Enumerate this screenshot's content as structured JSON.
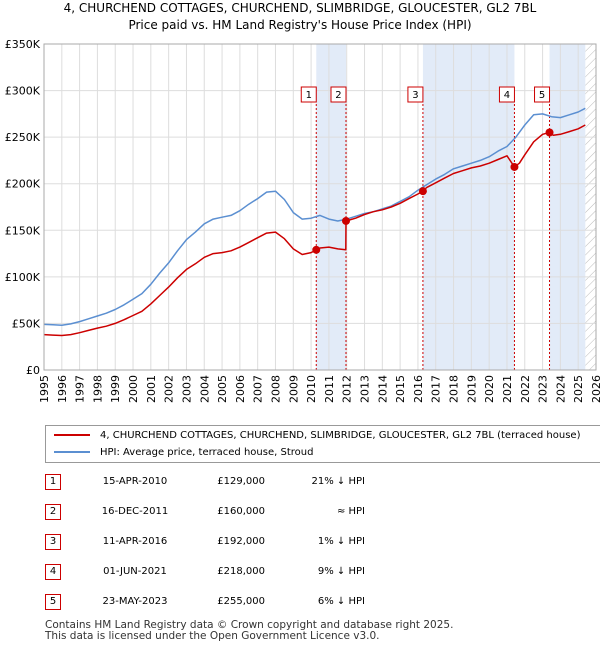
{
  "title_line1": "4, CHURCHEND COTTAGES, CHURCHEND, SLIMBRIDGE, GLOUCESTER, GL2 7BL",
  "title_line2": "Price paid vs. HM Land Registry's House Price Index (HPI)",
  "colors": {
    "price": "#cc0000",
    "hpi": "#5b8fd1",
    "shade": "#dbe6f6",
    "marker_line": "#cc0000"
  },
  "legend": {
    "price_label": "4, CHURCHEND COTTAGES, CHURCHEND, SLIMBRIDGE, GLOUCESTER, GL2 7BL (terraced house)",
    "hpi_label": "HPI: Average price, terraced house, Stroud"
  },
  "sales": [
    {
      "num": "1",
      "date": "15-APR-2010",
      "price": "£129,000",
      "rel": "21% ↓ HPI"
    },
    {
      "num": "2",
      "date": "16-DEC-2011",
      "price": "£160,000",
      "rel": "≈ HPI"
    },
    {
      "num": "3",
      "date": "11-APR-2016",
      "price": "£192,000",
      "rel": "1% ↓ HPI"
    },
    {
      "num": "4",
      "date": "01-JUN-2021",
      "price": "£218,000",
      "rel": "9% ↓ HPI"
    },
    {
      "num": "5",
      "date": "23-MAY-2023",
      "price": "£255,000",
      "rel": "6% ↓ HPI"
    }
  ],
  "footer_line1": "Contains HM Land Registry data © Crown copyright and database right 2025.",
  "footer_line2": "This data is licensed under the Open Government Licence v3.0.",
  "chart_data": {
    "type": "line",
    "title": "4, CHURCHEND COTTAGES, CHURCHEND, SLIMBRIDGE, GLOUCESTER, GL2 7BL — Price paid vs. HM Land Registry's House Price Index (HPI)",
    "xlabel": "",
    "ylabel": "",
    "xlim": [
      1995,
      2026
    ],
    "ylim": [
      0,
      350000
    ],
    "y_ticks": [
      0,
      50000,
      100000,
      150000,
      200000,
      250000,
      300000,
      350000
    ],
    "y_tick_labels": [
      "£0",
      "£50K",
      "£100K",
      "£150K",
      "£200K",
      "£250K",
      "£300K",
      "£350K"
    ],
    "x_ticks": [
      1995,
      1996,
      1997,
      1998,
      1999,
      2000,
      2001,
      2002,
      2003,
      2004,
      2005,
      2006,
      2007,
      2008,
      2009,
      2010,
      2011,
      2012,
      2013,
      2014,
      2015,
      2016,
      2017,
      2018,
      2019,
      2020,
      2021,
      2022,
      2023,
      2024,
      2025,
      2026
    ],
    "x_tick_labels": [
      "1995",
      "1996",
      "1997",
      "1998",
      "1999",
      "2000",
      "2001",
      "2002",
      "2003",
      "2004",
      "2005",
      "2006",
      "2007",
      "2008",
      "2009",
      "2010",
      "2011",
      "2012",
      "2013",
      "2014",
      "2015",
      "2016",
      "2017",
      "2018",
      "2019",
      "2020",
      "2021",
      "2022",
      "2023",
      "2024",
      "2025",
      "2026"
    ],
    "grid": true,
    "shaded_spans": [
      [
        2010.29,
        2011.96
      ],
      [
        2016.28,
        2021.42
      ],
      [
        2023.39,
        2025.4
      ]
    ],
    "hatch_from": 2025.4,
    "series": [
      {
        "name": "HPI: Average price, terraced house, Stroud",
        "x": [
          1995,
          1995.5,
          1996,
          1996.5,
          1997,
          1997.5,
          1998,
          1998.5,
          1999,
          1999.5,
          2000,
          2000.5,
          2001,
          2001.5,
          2002,
          2002.5,
          2003,
          2003.5,
          2004,
          2004.5,
          2005,
          2005.5,
          2006,
          2006.5,
          2007,
          2007.5,
          2008,
          2008.5,
          2009,
          2009.5,
          2010,
          2010.5,
          2011,
          2011.5,
          2012,
          2012.5,
          2013,
          2013.5,
          2014,
          2014.5,
          2015,
          2015.5,
          2016,
          2016.5,
          2017,
          2017.5,
          2018,
          2018.5,
          2019,
          2019.5,
          2020,
          2020.5,
          2021,
          2021.5,
          2022,
          2022.5,
          2023,
          2023.5,
          2024,
          2024.5,
          2025,
          2025.4
        ],
        "values": [
          49000,
          48500,
          48000,
          49500,
          52000,
          55000,
          58000,
          61000,
          65000,
          70000,
          76000,
          82000,
          92000,
          104000,
          115000,
          128000,
          140000,
          148000,
          157000,
          162000,
          164000,
          166000,
          171000,
          178000,
          184000,
          191000,
          192000,
          183000,
          169000,
          162000,
          163000,
          166000,
          162000,
          160000,
          162000,
          165000,
          168000,
          170000,
          173000,
          176000,
          181000,
          186000,
          193000,
          199000,
          205000,
          210000,
          216000,
          219000,
          222000,
          225000,
          229000,
          235000,
          240000,
          250000,
          263000,
          274000,
          275000,
          272000,
          271000,
          274000,
          277000,
          281000
        ]
      },
      {
        "name": "4, CHURCHEND COTTAGES, CHURCHEND, SLIMBRIDGE, GLOUCESTER, GL2 7BL (terraced house)",
        "x": [
          1995,
          1995.5,
          1996,
          1996.5,
          1997,
          1997.5,
          1998,
          1998.5,
          1999,
          1999.5,
          2000,
          2000.5,
          2001,
          2001.5,
          2002,
          2002.5,
          2003,
          2003.5,
          2004,
          2004.5,
          2005,
          2005.5,
          2006,
          2006.5,
          2007,
          2007.5,
          2008,
          2008.5,
          2009,
          2009.5,
          2010,
          2010.29,
          2010.5,
          2011,
          2011.5,
          2011.95,
          2011.96,
          2012.5,
          2013,
          2013.5,
          2014,
          2014.5,
          2015,
          2015.5,
          2016,
          2016.28,
          2016.5,
          2017,
          2017.5,
          2018,
          2018.5,
          2019,
          2019.5,
          2020,
          2020.5,
          2021,
          2021.42,
          2021.7,
          2022,
          2022.5,
          2023,
          2023.39,
          2023.6,
          2024,
          2024.5,
          2025,
          2025.4
        ],
        "values": [
          38000,
          37500,
          37000,
          38000,
          40000,
          42500,
          45000,
          47000,
          50000,
          54000,
          58500,
          63000,
          71000,
          80000,
          89000,
          99000,
          108000,
          114000,
          121000,
          125000,
          126000,
          128000,
          132000,
          137000,
          142000,
          147000,
          148000,
          141000,
          130000,
          124000,
          126000,
          129000,
          131000,
          132000,
          130000,
          129000,
          160000,
          163000,
          167000,
          170000,
          172000,
          175000,
          179000,
          184000,
          189000,
          192000,
          196000,
          201000,
          206000,
          211000,
          214000,
          217000,
          219000,
          222000,
          226000,
          230000,
          218000,
          222000,
          231000,
          245000,
          253000,
          255000,
          252000,
          253000,
          256000,
          259000,
          263000
        ]
      }
    ],
    "sale_points": [
      {
        "num": "1",
        "x": 2010.29,
        "value": 129000
      },
      {
        "num": "2",
        "x": 2011.96,
        "value": 160000
      },
      {
        "num": "3",
        "x": 2016.28,
        "value": 192000
      },
      {
        "num": "4",
        "x": 2021.42,
        "value": 218000
      },
      {
        "num": "5",
        "x": 2023.39,
        "value": 255000
      }
    ]
  }
}
